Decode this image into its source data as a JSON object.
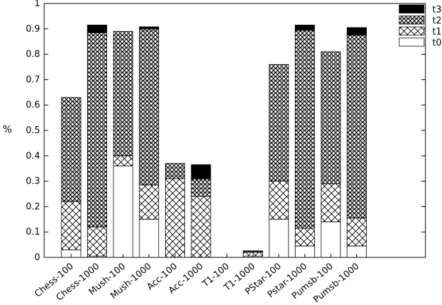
{
  "chart_data": {
    "type": "bar",
    "stacked": true,
    "title": "",
    "xlabel": "",
    "ylabel": "%",
    "ylim": [
      0,
      1
    ],
    "yticks": [
      "0",
      "0.1",
      "0.2",
      "0.3",
      "0.4",
      "0.5",
      "0.6",
      "0.7",
      "0.8",
      "0.9",
      "1"
    ],
    "legend_position": "top-right",
    "categories": [
      "Chess-100",
      "Chess-1000",
      "Mush-100",
      "Mush-1000",
      "Acc-100",
      "Acc-1000",
      "T1-100",
      "T1-1000",
      "PStar-100",
      "Pstar-1000",
      "Pumsb-100",
      "Pumsb-1000"
    ],
    "series": [
      {
        "name": "t0",
        "pattern": "white",
        "values": [
          0.03,
          0.005,
          0.36,
          0.15,
          0.0,
          0.0,
          0.0,
          0.005,
          0.15,
          0.045,
          0.14,
          0.045
        ]
      },
      {
        "name": "t1",
        "pattern": "crosshatch",
        "values": [
          0.19,
          0.115,
          0.04,
          0.135,
          0.31,
          0.24,
          0.0,
          0.015,
          0.15,
          0.07,
          0.15,
          0.11
        ]
      },
      {
        "name": "t2",
        "pattern": "dense",
        "values": [
          0.41,
          0.765,
          0.49,
          0.615,
          0.06,
          0.07,
          0.0,
          0.004,
          0.46,
          0.78,
          0.52,
          0.72
        ]
      },
      {
        "name": "t3",
        "pattern": "black",
        "values": [
          0.0,
          0.03,
          0.0,
          0.008,
          0.0,
          0.055,
          0.0,
          0.002,
          0.0,
          0.02,
          0.0,
          0.03
        ]
      }
    ]
  }
}
